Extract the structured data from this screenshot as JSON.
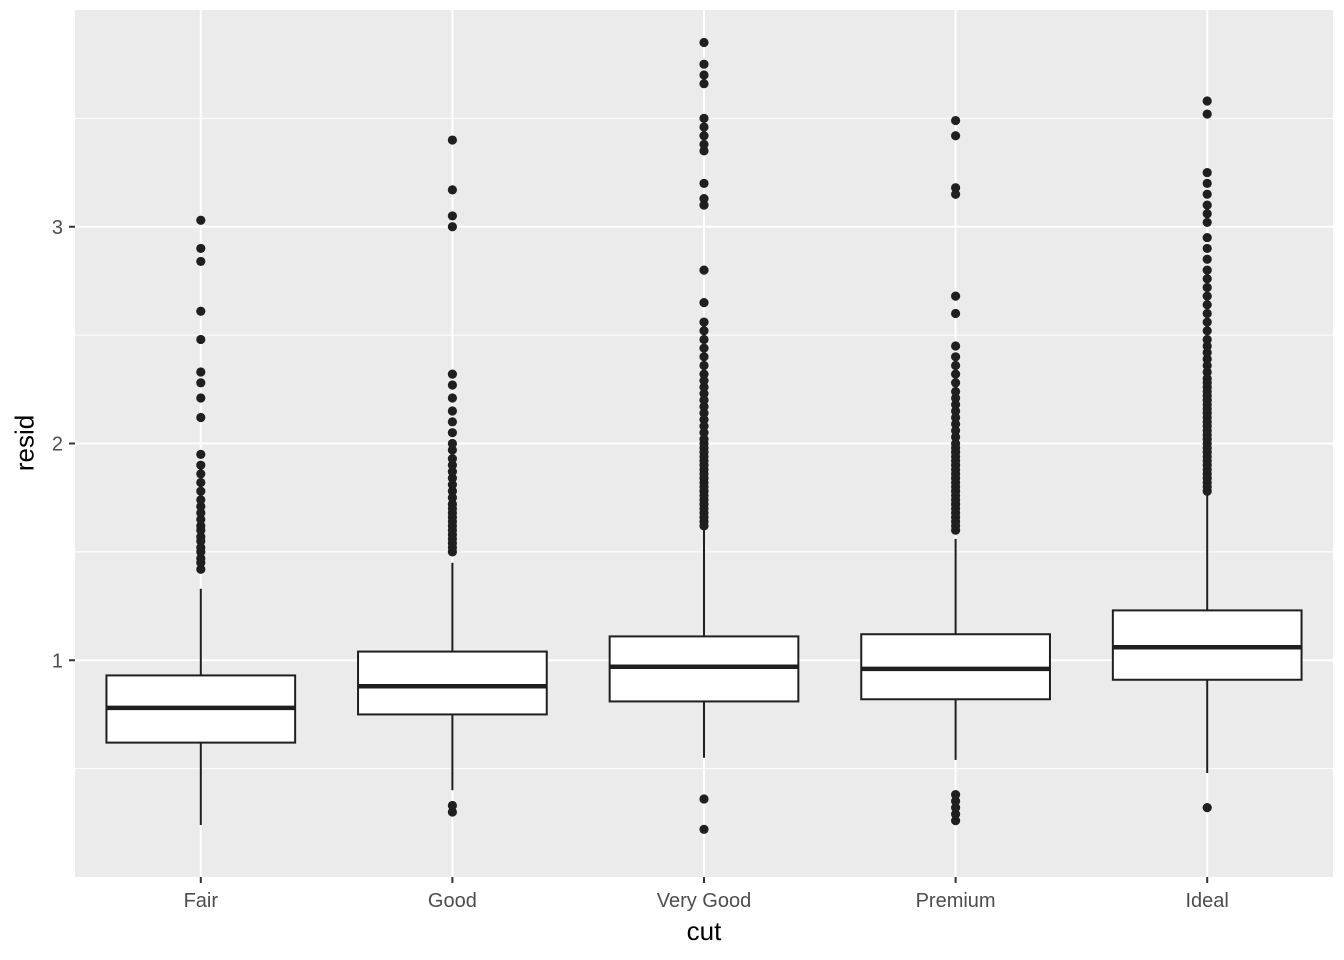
{
  "chart_data": {
    "type": "boxplot",
    "title": "",
    "xlabel": "cut",
    "ylabel": "resid",
    "categories": [
      "Fair",
      "Good",
      "Very Good",
      "Premium",
      "Ideal"
    ],
    "ylim": [
      0,
      4
    ],
    "yticks": [
      1,
      2,
      3
    ],
    "yticks_minor": [
      0.5,
      1.5,
      2.5,
      3.5
    ],
    "grid": "major-horizontal, minor-horizontal, major-vertical-at-categories",
    "legend": "none",
    "panel_bg": "#EBEBEB",
    "grid_color": "#FFFFFF",
    "box_fill": "#FFFFFF",
    "line_color": "#1F1F1F",
    "tick_color": "#333333",
    "tick_label_color": "#4D4D4D",
    "series": [
      {
        "category": "Fair",
        "whisker_low": 0.24,
        "q1": 0.62,
        "median": 0.78,
        "q3": 0.93,
        "whisker_high": 1.33,
        "outliers": [
          1.42,
          1.45,
          1.47,
          1.5,
          1.52,
          1.55,
          1.57,
          1.6,
          1.62,
          1.65,
          1.68,
          1.71,
          1.74,
          1.78,
          1.82,
          1.86,
          1.9,
          1.95,
          2.12,
          2.21,
          2.28,
          2.33,
          2.48,
          2.61,
          2.84,
          2.9,
          3.03
        ]
      },
      {
        "category": "Good",
        "whisker_low": 0.4,
        "q1": 0.75,
        "median": 0.88,
        "q3": 1.04,
        "whisker_high": 1.45,
        "outliers": [
          0.3,
          0.33,
          1.5,
          1.52,
          1.54,
          1.56,
          1.58,
          1.6,
          1.62,
          1.64,
          1.66,
          1.68,
          1.7,
          1.72,
          1.75,
          1.78,
          1.81,
          1.84,
          1.87,
          1.9,
          1.93,
          1.97,
          2.0,
          2.05,
          2.1,
          2.15,
          2.21,
          2.27,
          2.32,
          3.0,
          3.05,
          3.17,
          3.4
        ]
      },
      {
        "category": "Very Good",
        "whisker_low": 0.55,
        "q1": 0.81,
        "median": 0.97,
        "q3": 1.11,
        "whisker_high": 1.6,
        "outliers": [
          0.22,
          0.36,
          1.62,
          1.64,
          1.66,
          1.68,
          1.7,
          1.72,
          1.74,
          1.76,
          1.78,
          1.8,
          1.82,
          1.84,
          1.86,
          1.88,
          1.9,
          1.92,
          1.94,
          1.96,
          1.98,
          2.0,
          2.02,
          2.05,
          2.08,
          2.11,
          2.14,
          2.17,
          2.2,
          2.23,
          2.26,
          2.29,
          2.32,
          2.36,
          2.4,
          2.44,
          2.48,
          2.52,
          2.56,
          2.65,
          2.8,
          3.1,
          3.13,
          3.2,
          3.35,
          3.38,
          3.42,
          3.46,
          3.5,
          3.66,
          3.7,
          3.75,
          3.85
        ]
      },
      {
        "category": "Premium",
        "whisker_low": 0.54,
        "q1": 0.82,
        "median": 0.96,
        "q3": 1.12,
        "whisker_high": 1.56,
        "outliers": [
          0.26,
          0.29,
          0.32,
          0.35,
          0.38,
          1.6,
          1.62,
          1.64,
          1.66,
          1.68,
          1.7,
          1.72,
          1.74,
          1.76,
          1.78,
          1.8,
          1.82,
          1.84,
          1.86,
          1.88,
          1.9,
          1.92,
          1.94,
          1.96,
          1.98,
          2.0,
          2.03,
          2.06,
          2.09,
          2.12,
          2.15,
          2.18,
          2.21,
          2.24,
          2.28,
          2.32,
          2.36,
          2.4,
          2.45,
          2.6,
          2.68,
          3.15,
          3.18,
          3.42,
          3.49
        ]
      },
      {
        "category": "Ideal",
        "whisker_low": 0.48,
        "q1": 0.91,
        "median": 1.06,
        "q3": 1.23,
        "whisker_high": 1.76,
        "outliers": [
          0.32,
          1.78,
          1.8,
          1.82,
          1.84,
          1.86,
          1.88,
          1.9,
          1.92,
          1.94,
          1.96,
          1.98,
          2.0,
          2.02,
          2.04,
          2.06,
          2.08,
          2.1,
          2.12,
          2.14,
          2.16,
          2.18,
          2.2,
          2.22,
          2.24,
          2.26,
          2.28,
          2.3,
          2.33,
          2.36,
          2.39,
          2.42,
          2.45,
          2.48,
          2.52,
          2.56,
          2.6,
          2.64,
          2.68,
          2.72,
          2.76,
          2.8,
          2.85,
          2.9,
          2.95,
          3.02,
          3.06,
          3.1,
          3.15,
          3.2,
          3.25,
          3.52,
          3.58
        ]
      }
    ]
  }
}
